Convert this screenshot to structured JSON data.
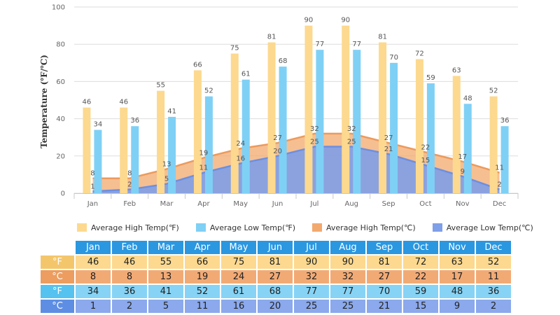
{
  "chart_data": {
    "type": "bar",
    "title": "",
    "ylabel": "Temperature (℉/℃)",
    "xlabel": "",
    "ylim": [
      0,
      100
    ],
    "yticks": [
      "0",
      "20",
      "40",
      "60",
      "80",
      "100"
    ],
    "categories": [
      "Jan",
      "Feb",
      "Mar",
      "Apr",
      "May",
      "Jun",
      "Jul",
      "Aug",
      "Sep",
      "Oct",
      "Nov",
      "Dec"
    ],
    "series": [
      {
        "name": "Average High Temp(℉)",
        "kind": "bar",
        "color": "#fcd98f",
        "values": [
          46,
          46,
          55,
          66,
          75,
          81,
          90,
          90,
          81,
          72,
          63,
          52
        ]
      },
      {
        "name": "Average Low Temp(℉)",
        "kind": "bar",
        "color": "#7fd0f5",
        "values": [
          34,
          36,
          41,
          52,
          61,
          68,
          77,
          77,
          70,
          59,
          48,
          36
        ]
      },
      {
        "name": "Average High Temp(℃)",
        "kind": "area",
        "color": "#f2a96e",
        "values": [
          8,
          8,
          13,
          19,
          24,
          27,
          32,
          32,
          27,
          22,
          17,
          11
        ]
      },
      {
        "name": "Average Low Temp(℃)",
        "kind": "area",
        "color": "#7f9fe8",
        "values": [
          1,
          2,
          5,
          11,
          16,
          20,
          25,
          25,
          21,
          15,
          9,
          2
        ]
      }
    ]
  },
  "table": {
    "months": [
      "Jan",
      "Feb",
      "Mar",
      "Apr",
      "May",
      "Jun",
      "Jul",
      "Aug",
      "Sep",
      "Oct",
      "Nov",
      "Dec"
    ],
    "rows": [
      {
        "label": "°F",
        "head_color": "#f4c66b",
        "cell_color": "#fcd98f",
        "values": [
          "46",
          "46",
          "55",
          "66",
          "75",
          "81",
          "90",
          "90",
          "81",
          "72",
          "63",
          "52"
        ]
      },
      {
        "label": "°C",
        "head_color": "#ec9d5f",
        "cell_color": "#f2aa75",
        "values": [
          "8",
          "8",
          "13",
          "19",
          "24",
          "27",
          "32",
          "32",
          "27",
          "22",
          "17",
          "11"
        ]
      },
      {
        "label": "°F",
        "head_color": "#55c2ef",
        "cell_color": "#86d3f5",
        "values": [
          "34",
          "36",
          "41",
          "52",
          "61",
          "68",
          "77",
          "77",
          "70",
          "59",
          "48",
          "36"
        ]
      },
      {
        "label": "°C",
        "head_color": "#5d8ee3",
        "cell_color": "#8ba9ec",
        "values": [
          "1",
          "2",
          "5",
          "11",
          "16",
          "20",
          "25",
          "25",
          "21",
          "15",
          "9",
          "2"
        ]
      }
    ]
  }
}
